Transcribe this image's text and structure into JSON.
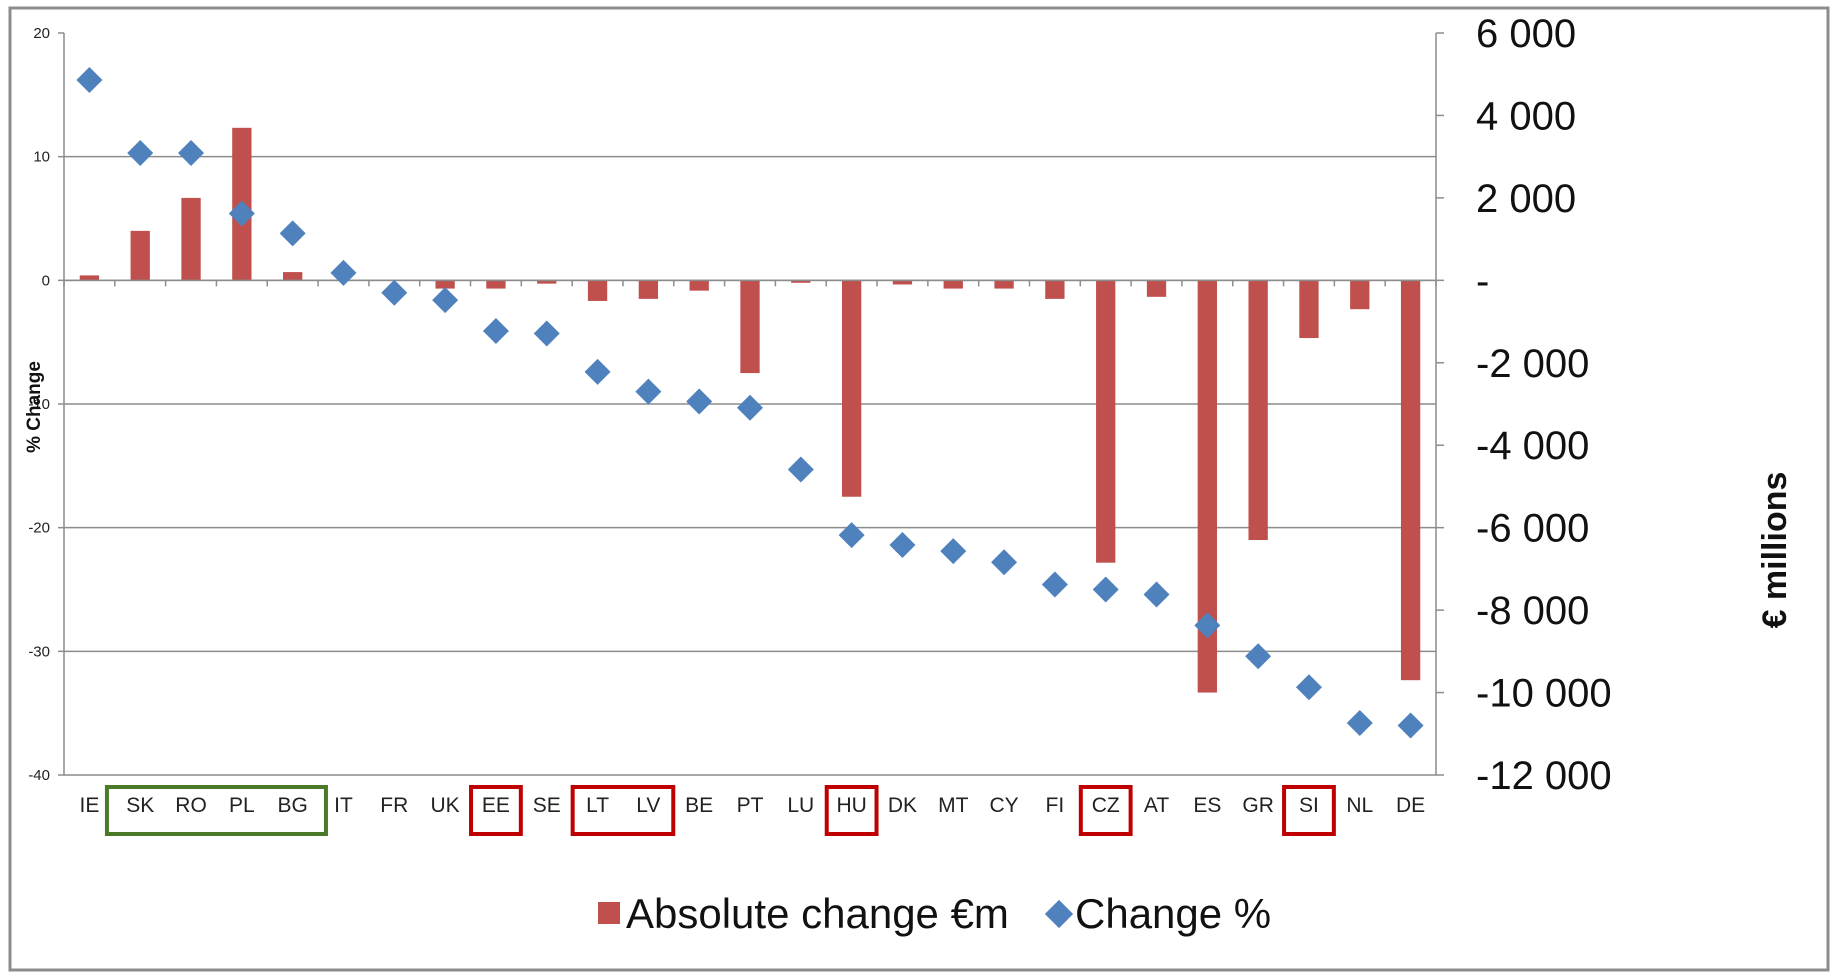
{
  "chart_data": {
    "type": "bar+scatter",
    "categories": [
      "IE",
      "SK",
      "RO",
      "PL",
      "BG",
      "IT",
      "FR",
      "UK",
      "EE",
      "SE",
      "LT",
      "LV",
      "BE",
      "PT",
      "LU",
      "HU",
      "DK",
      "MT",
      "CY",
      "FI",
      "CZ",
      "AT",
      "ES",
      "GR",
      "SI",
      "NL",
      "DE"
    ],
    "series": [
      {
        "name": "Absolute change €m",
        "type": "bar",
        "axis": "right",
        "color": "#c0504d",
        "values": [
          120,
          1200,
          2000,
          3700,
          200,
          0,
          0,
          -200,
          -200,
          -80,
          -500,
          -450,
          -250,
          -2250,
          -60,
          -5250,
          -100,
          -200,
          -200,
          -450,
          -6850,
          -400,
          -10000,
          -6300,
          -1400,
          -700,
          -9700
        ]
      },
      {
        "name": "Change %",
        "type": "scatter",
        "axis": "left",
        "color": "#4f81bd",
        "values": [
          16.2,
          10.3,
          10.3,
          5.4,
          3.8,
          0.6,
          -1.0,
          -1.6,
          -4.1,
          -4.3,
          -7.4,
          -9.0,
          -9.8,
          -10.3,
          -15.3,
          -20.6,
          -21.4,
          -21.9,
          -22.8,
          -24.6,
          -25.0,
          -25.4,
          -27.9,
          -30.4,
          -32.9,
          -35.8,
          -36.0
        ]
      }
    ],
    "y_left": {
      "label": "% Change",
      "min": -40,
      "max": 20,
      "ticks": [
        "20",
        "10",
        "0",
        "-10",
        "-20",
        "-30",
        "-40"
      ]
    },
    "y_right": {
      "label": "€ millions",
      "min": -12000,
      "max": 6000,
      "ticks": [
        "6 000",
        "4 000",
        "2 000",
        "-",
        "-2 000",
        "-4 000",
        "-6 000",
        "-8 000",
        "-10 000",
        "-12 000"
      ]
    },
    "highlight_groups": [
      {
        "categories": [
          "SK",
          "RO",
          "PL",
          "BG"
        ],
        "color": "#4a7a28"
      },
      {
        "categories": [
          "EE"
        ],
        "color": "#c00000"
      },
      {
        "categories": [
          "LT",
          "LV"
        ],
        "color": "#c00000"
      },
      {
        "categories": [
          "HU"
        ],
        "color": "#c00000"
      },
      {
        "categories": [
          "CZ"
        ],
        "color": "#c00000"
      },
      {
        "categories": [
          "SI"
        ],
        "color": "#c00000"
      }
    ],
    "grid": true,
    "legend": {
      "position": "bottom",
      "items": [
        "Absolute change €m",
        "Change %"
      ]
    }
  }
}
